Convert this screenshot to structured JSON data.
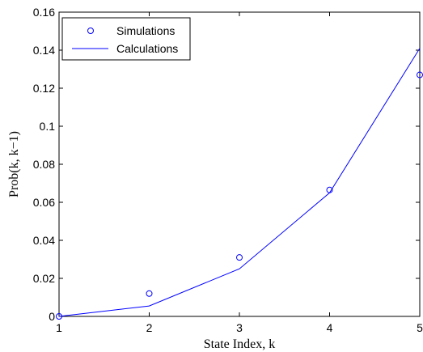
{
  "chart_data": {
    "type": "line",
    "xlabel": "State Index, k",
    "ylabel": "Prob(k, k−1)",
    "xlim": [
      1,
      5
    ],
    "ylim": [
      0,
      0.16
    ],
    "xticks": [
      {
        "value": 1,
        "label": "1"
      },
      {
        "value": 2,
        "label": "2"
      },
      {
        "value": 3,
        "label": "3"
      },
      {
        "value": 4,
        "label": "4"
      },
      {
        "value": 5,
        "label": "5"
      }
    ],
    "yticks": [
      {
        "value": 0,
        "label": "0"
      },
      {
        "value": 0.02,
        "label": "0.02"
      },
      {
        "value": 0.04,
        "label": "0.04"
      },
      {
        "value": 0.06,
        "label": "0.06"
      },
      {
        "value": 0.08,
        "label": "0.08"
      },
      {
        "value": 0.1,
        "label": "0.1"
      },
      {
        "value": 0.12,
        "label": "0.12"
      },
      {
        "value": 0.14,
        "label": "0.14"
      },
      {
        "value": 0.16,
        "label": "0.16"
      }
    ],
    "grid": false,
    "legend_position": "top-left",
    "series": [
      {
        "name": "Simulations",
        "style": "markers",
        "marker": "circle",
        "color": "#0000ff",
        "x": [
          1,
          2,
          3,
          4,
          5
        ],
        "y": [
          0,
          0.012,
          0.031,
          0.0665,
          0.127
        ]
      },
      {
        "name": "Calculations",
        "style": "line",
        "color": "#0000ff",
        "x": [
          1,
          2,
          3,
          4,
          5
        ],
        "y": [
          0,
          0.0055,
          0.025,
          0.065,
          0.141
        ]
      }
    ]
  }
}
